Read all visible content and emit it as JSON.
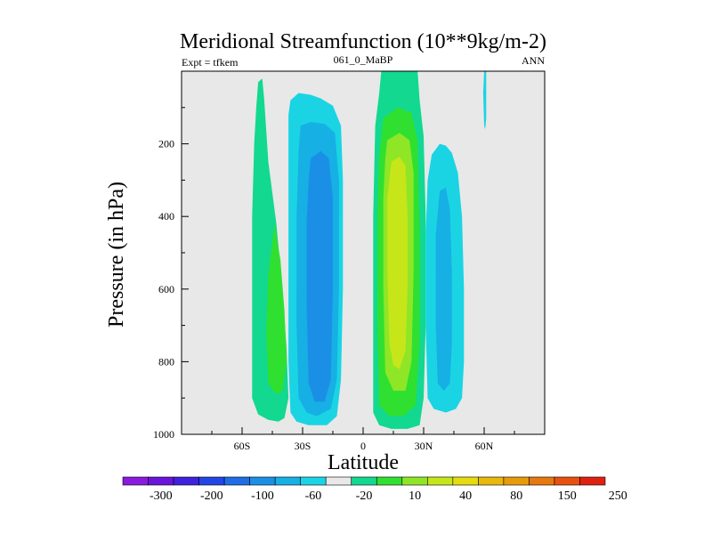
{
  "chart_data": {
    "type": "contour",
    "title": "Meridional Streamfunction (10**9kg/m-2)",
    "left_label": "Expt = tfkem",
    "center_label": "061_0_MaBP",
    "right_label": "ANN",
    "xlabel": "Latitude",
    "ylabel": "Pressure (in hPa)",
    "x_ticks": [
      "60S",
      "30S",
      "0",
      "30N",
      "60N"
    ],
    "x_tick_values": [
      -60,
      -30,
      0,
      30,
      60
    ],
    "xlim": [
      -90,
      90
    ],
    "y_ticks": [
      "200",
      "400",
      "600",
      "800",
      "1000"
    ],
    "y_tick_values": [
      200,
      400,
      600,
      800,
      1000
    ],
    "ylim": [
      1000,
      0
    ],
    "grid": false,
    "background_color": "#e8e8e8",
    "contour_levels": [
      "-300",
      "-200",
      "-100",
      "-60",
      "-20",
      "10",
      "40",
      "80",
      "150",
      "250"
    ],
    "colorbar_colors": [
      "#8a1ae0",
      "#6a14dc",
      "#3f22e0",
      "#2245e8",
      "#1f6ce6",
      "#1b8fe6",
      "#16b0e4",
      "#1ad4e4",
      "#e8e8e8",
      "#12d890",
      "#30e030",
      "#8ee626",
      "#c6e61a",
      "#e6dc0e",
      "#e8b80c",
      "#e89a0a",
      "#e87810",
      "#e85010",
      "#e02010"
    ],
    "cells": [
      {
        "name": "sh-polar-cell",
        "sign": "positive",
        "lat_range": [
          -55,
          -38
        ],
        "p_range": [
          20,
          960
        ],
        "core_level": "40",
        "core_lat": -43,
        "core_p": 660
      },
      {
        "name": "sh-ferrel-cell",
        "sign": "negative",
        "lat_range": [
          -37,
          -10
        ],
        "p_range": [
          60,
          975
        ],
        "core_level": "-60",
        "core_lat": -18,
        "core_p": 580
      },
      {
        "name": "hadley-cell",
        "sign": "positive",
        "lat_range": [
          5,
          31
        ],
        "p_range": [
          0,
          985
        ],
        "core_level": "80",
        "core_lat": 16,
        "core_p": 580
      },
      {
        "name": "nh-ferrel-cell",
        "sign": "negative",
        "lat_range": [
          31,
          50
        ],
        "p_range": [
          200,
          940
        ],
        "core_level": "-20",
        "core_lat": 40,
        "core_p": 600
      },
      {
        "name": "nh-upper-streak",
        "sign": "negative",
        "lat_range": [
          59,
          62
        ],
        "p_range": [
          0,
          160
        ],
        "core_level": "-20",
        "core_lat": 60,
        "core_p": 60
      }
    ]
  }
}
